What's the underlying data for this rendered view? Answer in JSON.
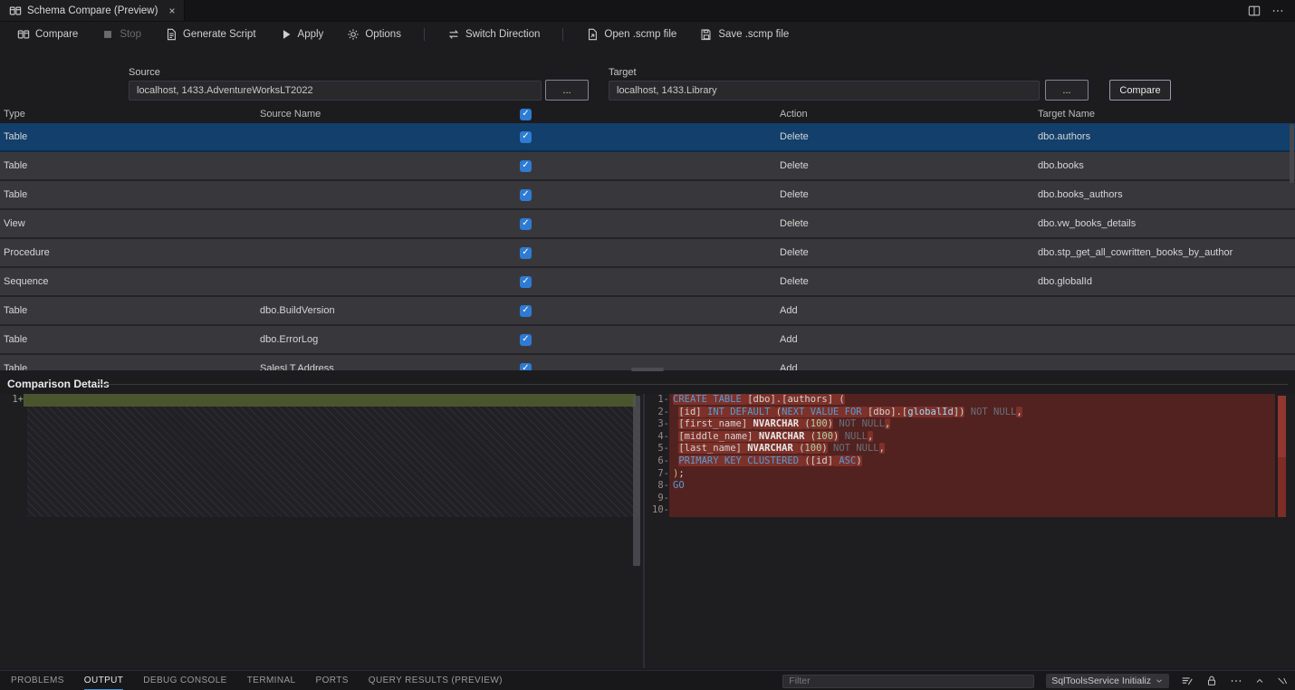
{
  "window": {
    "tab_title": "Schema Compare (Preview)",
    "tab_close": "×"
  },
  "toolbar": {
    "buttons": [
      {
        "label": "Compare",
        "icon": "compare"
      },
      {
        "label": "Stop",
        "icon": "stop",
        "disabled": true
      },
      {
        "label": "Generate Script",
        "icon": "script"
      },
      {
        "label": "Apply",
        "icon": "play"
      },
      {
        "label": "Options",
        "icon": "gear"
      },
      {
        "separator": true
      },
      {
        "label": "Switch Direction",
        "icon": "switch"
      },
      {
        "separator": true
      },
      {
        "label": "Open .scmp file",
        "icon": "open"
      },
      {
        "label": "Save .scmp file",
        "icon": "save"
      }
    ]
  },
  "connections": {
    "source_label": "Source",
    "source_value": "localhost, 1433.AdventureWorksLT2022",
    "target_label": "Target",
    "target_value": "localhost, 1433.Library",
    "browse_label": "...",
    "compare_label": "Compare"
  },
  "grid": {
    "headers": {
      "type": "Type",
      "source": "Source Name",
      "action": "Action",
      "target": "Target Name"
    },
    "select_all_checked": true,
    "check_glyph": "✓",
    "rows": [
      {
        "type": "Table",
        "source": "",
        "checked": true,
        "action": "Delete",
        "target": "dbo.authors",
        "selected": true
      },
      {
        "type": "Table",
        "source": "",
        "checked": true,
        "action": "Delete",
        "target": "dbo.books"
      },
      {
        "type": "Table",
        "source": "",
        "checked": true,
        "action": "Delete",
        "target": "dbo.books_authors"
      },
      {
        "type": "View",
        "source": "",
        "checked": true,
        "action": "Delete",
        "target": "dbo.vw_books_details"
      },
      {
        "type": "Procedure",
        "source": "",
        "checked": true,
        "action": "Delete",
        "target": "dbo.stp_get_all_cowritten_books_by_author"
      },
      {
        "type": "Sequence",
        "source": "",
        "checked": true,
        "action": "Delete",
        "target": "dbo.globalId"
      },
      {
        "type": "Table",
        "source": "dbo.BuildVersion",
        "checked": true,
        "action": "Add",
        "target": ""
      },
      {
        "type": "Table",
        "source": "dbo.ErrorLog",
        "checked": true,
        "action": "Add",
        "target": ""
      },
      {
        "type": "Table",
        "source": "SalesLT.Address",
        "checked": true,
        "action": "Add",
        "target": ""
      }
    ]
  },
  "details": {
    "title": "Comparison Details",
    "left": {
      "lines": [
        {
          "num": "1",
          "sign": "+",
          "green": true,
          "segs": []
        }
      ]
    },
    "right": {
      "lines": [
        {
          "num": "1",
          "sign": "-",
          "segs": [
            {
              "t": "CREATE TABLE ",
              "c": "kw",
              "h": true
            },
            {
              "t": "[dbo].[authors] (",
              "c": "pl",
              "h": true
            }
          ]
        },
        {
          "num": "2",
          "sign": "-",
          "segs": [
            {
              "t": " ",
              "c": "pl"
            },
            {
              "t": "[id] ",
              "c": "pl",
              "h": true
            },
            {
              "t": "INT DEFAULT ",
              "c": "kw",
              "h": true
            },
            {
              "t": "(",
              "c": "pl",
              "h": true
            },
            {
              "t": "NEXT VALUE FOR ",
              "c": "kw",
              "h": true
            },
            {
              "t": "[dbo].[",
              "c": "pl",
              "h": true
            },
            {
              "t": "globalId",
              "c": "var",
              "h": true
            },
            {
              "t": "])",
              "c": "pl",
              "h": true
            },
            {
              "t": " NOT NULL",
              "c": "dim"
            },
            {
              "t": ",",
              "c": "pl",
              "h": true
            }
          ]
        },
        {
          "num": "3",
          "sign": "-",
          "segs": [
            {
              "t": " ",
              "c": "pl"
            },
            {
              "t": "[first_name] ",
              "c": "pl",
              "h": true
            },
            {
              "t": "NVARCHAR ",
              "c": "typ",
              "h": true
            },
            {
              "t": "(",
              "c": "pl",
              "h": true
            },
            {
              "t": "100",
              "c": "num",
              "h": true
            },
            {
              "t": ")",
              "c": "pl",
              "h": true
            },
            {
              "t": " NOT NULL",
              "c": "dim"
            },
            {
              "t": ",",
              "c": "pl",
              "h": true
            }
          ]
        },
        {
          "num": "4",
          "sign": "-",
          "segs": [
            {
              "t": " ",
              "c": "pl"
            },
            {
              "t": "[middle_name] ",
              "c": "pl",
              "h": true
            },
            {
              "t": "NVARCHAR ",
              "c": "typ",
              "h": true
            },
            {
              "t": "(",
              "c": "pl",
              "h": true
            },
            {
              "t": "100",
              "c": "num",
              "h": true
            },
            {
              "t": ")",
              "c": "pl",
              "h": true
            },
            {
              "t": " NULL",
              "c": "dim"
            },
            {
              "t": ",",
              "c": "pl",
              "h": true
            }
          ]
        },
        {
          "num": "5",
          "sign": "-",
          "segs": [
            {
              "t": " ",
              "c": "pl"
            },
            {
              "t": "[last_name] ",
              "c": "pl",
              "h": true
            },
            {
              "t": "NVARCHAR ",
              "c": "typ",
              "h": true
            },
            {
              "t": "(",
              "c": "pl",
              "h": true
            },
            {
              "t": "100",
              "c": "num",
              "h": true
            },
            {
              "t": ")",
              "c": "pl",
              "h": true
            },
            {
              "t": " NOT NULL",
              "c": "dim"
            },
            {
              "t": ",",
              "c": "pl",
              "h": true
            }
          ]
        },
        {
          "num": "6",
          "sign": "-",
          "segs": [
            {
              "t": " ",
              "c": "pl"
            },
            {
              "t": "PRIMARY KEY CLUSTERED ",
              "c": "kw",
              "h": true
            },
            {
              "t": "(",
              "c": "pl",
              "h": true
            },
            {
              "t": "[id]",
              "c": "pl",
              "h": true
            },
            {
              "t": " ASC",
              "c": "kw",
              "h": true
            },
            {
              "t": ")",
              "c": "pl",
              "h": true
            }
          ]
        },
        {
          "num": "7",
          "sign": "-",
          "segs": [
            {
              "t": ")",
              "c": "br"
            },
            {
              "t": ";",
              "c": "pl"
            }
          ]
        },
        {
          "num": "8",
          "sign": "-",
          "segs": [
            {
              "t": "GO",
              "c": "kw"
            }
          ]
        },
        {
          "num": "9",
          "sign": "-",
          "segs": []
        },
        {
          "num": "10",
          "sign": "-",
          "segs": []
        }
      ]
    }
  },
  "panel": {
    "tabs": [
      {
        "label": "PROBLEMS"
      },
      {
        "label": "OUTPUT",
        "active": true
      },
      {
        "label": "DEBUG CONSOLE"
      },
      {
        "label": "TERMINAL"
      },
      {
        "label": "PORTS"
      },
      {
        "label": "QUERY RESULTS (PREVIEW)"
      }
    ],
    "filter_placeholder": "Filter",
    "service_selector": "SqlToolsService Initializ"
  },
  "colors": {
    "accent_checkbox": "#2e7bd4",
    "selected_row": "#123f6b",
    "diff_removed_line": "#522220",
    "diff_removed_text": "#7d3129",
    "diff_added_line": "#4b552d",
    "keyword_blue": "#569cd6",
    "active_tab_underline": "#4894d8"
  }
}
